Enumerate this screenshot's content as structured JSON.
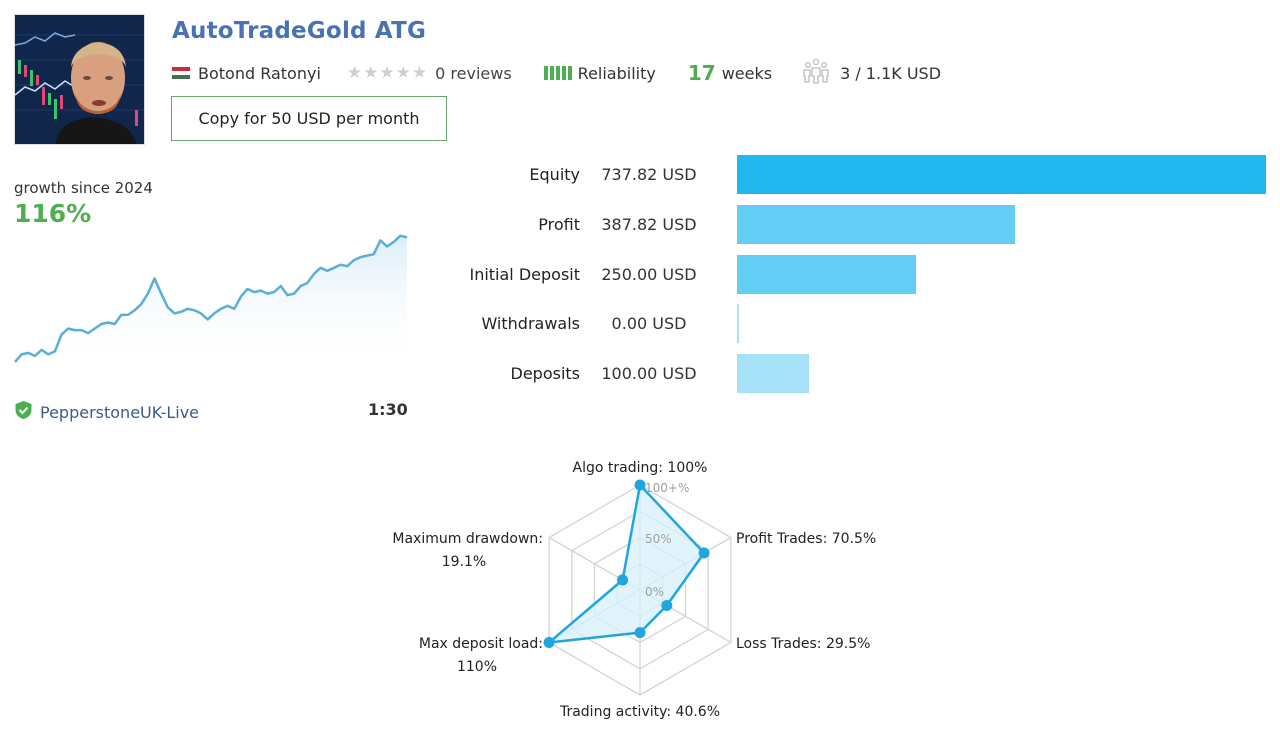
{
  "signal": {
    "title": "AutoTradeGold ATG",
    "author": "Botond Ratonyi",
    "country_flag": "hungary-flag",
    "stars_total": 5,
    "stars_filled": 0,
    "reviews": "0 reviews",
    "reliability_label": "Reliability",
    "reliability_bars": 5,
    "weeks_number": "17",
    "weeks_label": "weeks",
    "subscribers": "3 / 1.1K USD",
    "copy_button": "Copy for 50 USD per month"
  },
  "growth": {
    "label": "growth since 2024",
    "value": "116%",
    "broker": "PepperstoneUK-Live",
    "leverage": "1:30"
  },
  "colors": {
    "title": "#4a72b2",
    "green": "#4caf50",
    "bar_equity": "#22b8ef",
    "bar_mid": "#64cdf3",
    "bar_light": "#a6e1f8",
    "line": "#5aaed8",
    "radar_line": "#1fa6dc"
  },
  "chart_data": [
    {
      "type": "line",
      "title": "growth since 2024",
      "summary_value": "116%",
      "xlabel": "",
      "ylabel": "",
      "grid": false,
      "x": [
        0,
        1,
        2,
        3,
        4,
        5,
        6,
        7,
        8,
        9,
        10,
        11,
        12,
        13,
        14,
        15,
        16,
        17,
        18,
        19,
        20,
        21,
        22,
        23,
        24,
        25,
        26,
        27,
        28,
        29,
        30,
        31,
        32,
        33,
        34,
        35,
        36,
        37,
        38,
        39,
        40,
        41,
        42,
        43,
        44,
        45,
        46,
        47,
        48,
        49,
        50,
        51,
        52,
        53,
        54,
        55,
        56,
        57,
        58,
        59
      ],
      "values": [
        0,
        5,
        6,
        4,
        8,
        5,
        7,
        18,
        22,
        21,
        21,
        19,
        22,
        25,
        26,
        25,
        31,
        31,
        34,
        38,
        45,
        55,
        45,
        36,
        32,
        33,
        35,
        34,
        32,
        28,
        32,
        35,
        37,
        35,
        43,
        48,
        46,
        47,
        45,
        46,
        50,
        44,
        45,
        50,
        52,
        58,
        62,
        60,
        62,
        64,
        63,
        67,
        69,
        70,
        71,
        80,
        76,
        79,
        83,
        82
      ],
      "ylim": [
        0,
        100
      ]
    },
    {
      "type": "bar",
      "orientation": "horizontal",
      "categories": [
        "Equity",
        "Profit",
        "Initial Deposit",
        "Withdrawals",
        "Deposits"
      ],
      "values": [
        737.82,
        387.82,
        250.0,
        0.0,
        100.0
      ],
      "value_labels": [
        "737.82 USD",
        "387.82 USD",
        "250.00 USD",
        "0.00 USD",
        "100.00 USD"
      ],
      "unit": "USD"
    },
    {
      "type": "radar",
      "axes": [
        "Algo trading",
        "Profit Trades",
        "Loss Trades",
        "Trading activity",
        "Max deposit load",
        "Maximum drawdown"
      ],
      "values": [
        100,
        70.5,
        29.5,
        40.6,
        110,
        19.1
      ],
      "labels": [
        "Algo trading: 100%",
        "Profit Trades: 70.5%",
        "Loss Trades: 29.5%",
        "Trading activity: 40.6%",
        "Max deposit load:",
        "Maximum drawdown:"
      ],
      "sublabels": [
        "",
        "",
        "",
        "",
        "110%",
        "19.1%"
      ],
      "scale_labels": [
        "0%",
        "50%",
        "100+%"
      ],
      "range": [
        0,
        100
      ]
    }
  ]
}
